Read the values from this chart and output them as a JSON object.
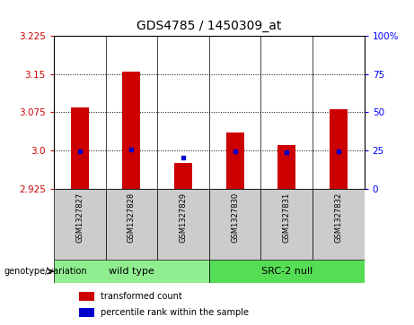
{
  "title": "GDS4785 / 1450309_at",
  "samples": [
    "GSM1327827",
    "GSM1327828",
    "GSM1327829",
    "GSM1327830",
    "GSM1327831",
    "GSM1327832"
  ],
  "red_values": [
    3.085,
    3.155,
    2.975,
    3.035,
    3.01,
    3.08
  ],
  "blue_values": [
    2.998,
    3.002,
    2.985,
    2.998,
    2.997,
    2.998
  ],
  "ylim_left": [
    2.925,
    3.225
  ],
  "ylim_right": [
    0,
    100
  ],
  "yticks_left": [
    2.925,
    3.0,
    3.075,
    3.15,
    3.225
  ],
  "yticks_right": [
    0,
    25,
    50,
    75,
    100
  ],
  "grid_values": [
    3.0,
    3.075,
    3.15
  ],
  "bar_bottom": 2.925,
  "bar_width": 0.35,
  "red_color": "#cc0000",
  "blue_color": "#0000cc",
  "bg_color": "#cccccc",
  "group_colors": [
    "#90ee90",
    "#55dd55"
  ],
  "group_labels": [
    "wild type",
    "SRC-2 null"
  ],
  "group_ranges": [
    [
      0,
      2
    ],
    [
      3,
      5
    ]
  ],
  "legend_red_label": "transformed count",
  "legend_blue_label": "percentile rank within the sample",
  "genotype_label": "genotype/variation",
  "title_fontsize": 10,
  "tick_fontsize": 7.5,
  "label_fontsize": 7.5
}
